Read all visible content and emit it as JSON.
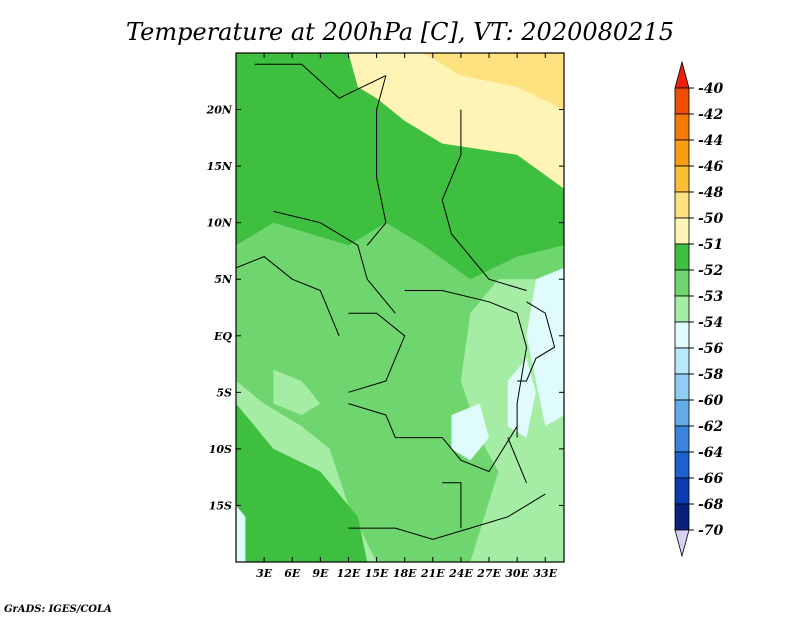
{
  "chart_data": {
    "type": "heatmap",
    "title": "Temperature at 200hPa [C], VT: 2020080215",
    "x_ticks": [
      "3E",
      "6E",
      "9E",
      "12E",
      "15E",
      "18E",
      "21E",
      "24E",
      "27E",
      "30E",
      "33E"
    ],
    "x_tick_values": [
      3,
      6,
      9,
      12,
      15,
      18,
      21,
      24,
      27,
      30,
      33
    ],
    "y_ticks": [
      "20N",
      "15N",
      "10N",
      "5N",
      "EQ",
      "5S",
      "10S",
      "15S"
    ],
    "y_tick_values": [
      20,
      15,
      10,
      5,
      0,
      -5,
      -10,
      -15
    ],
    "xlim": [
      0,
      35
    ],
    "ylim": [
      -20,
      25
    ],
    "legend": {
      "position": "right",
      "labels": [
        "-40",
        "-42",
        "-44",
        "-46",
        "-48",
        "-50",
        "-51",
        "-52",
        "-53",
        "-54",
        "-56",
        "-58",
        "-60",
        "-62",
        "-64",
        "-66",
        "-68",
        "-70"
      ],
      "colors": [
        "#e8200c",
        "#f04e08",
        "#f57a04",
        "#f99f0f",
        "#fbbf36",
        "#fde27f",
        "#fef4b5",
        "#3fbf3f",
        "#6fd66f",
        "#a5eca5",
        "#e0fbfb",
        "#b7e8fb",
        "#90cdf4",
        "#63abe8",
        "#3a84dc",
        "#1c62cf",
        "#0b3cb4",
        "#08217c",
        "#d8d0f2"
      ]
    },
    "field_levels_present": [
      "-50",
      "-51",
      "-52",
      "-53",
      "-54",
      "-56"
    ],
    "regions": [
      {
        "level": "-51",
        "area": "north, above ~18N east of 15E and above ~22N from 9E"
      },
      {
        "level": "-52",
        "area": "central Sahel ~8N-20N"
      },
      {
        "level": "-53",
        "area": "west and central belt"
      },
      {
        "level": "-54",
        "area": "Congo basin and south"
      },
      {
        "level": "-56",
        "area": "patches near Lake Victoria and east Africa ~3N-12S"
      }
    ]
  },
  "credit": "GrADS: IGES/COLA"
}
